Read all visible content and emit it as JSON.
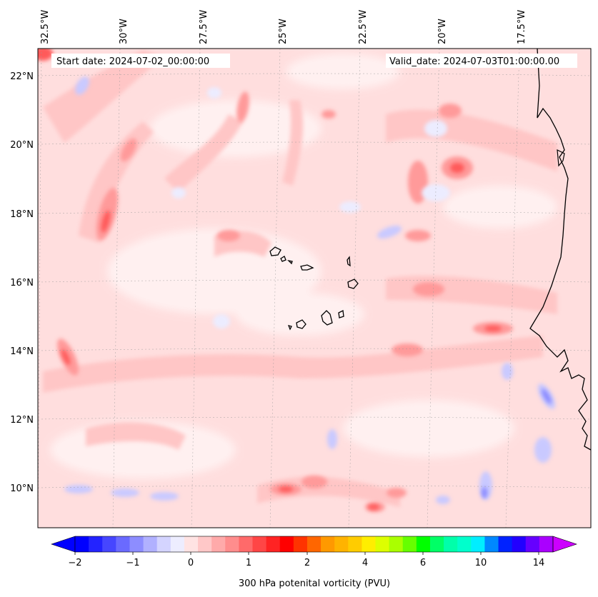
{
  "header": {
    "start_date": "Start date: 2024-07-02_00:00:00",
    "valid_date": "Valid_date: 2024-07-03T01:00:00.00"
  },
  "map": {
    "lon_labels": [
      "32.5°W",
      "30°W",
      "27.5°W",
      "25°W",
      "22.5°W",
      "20°W",
      "17.5°W"
    ],
    "lat_labels": [
      "22°N",
      "20°N",
      "18°N",
      "16°N",
      "14°N",
      "12°N",
      "10°N"
    ],
    "extent_lon": [
      -32.5,
      -15.0
    ],
    "extent_lat": [
      8.9,
      22.8
    ],
    "field": "300 hPa potential vorticity",
    "gridlines": true,
    "coastline_color": "#000000"
  },
  "colorbar": {
    "label": "300 hPa potenital vorticity (PVU)",
    "tick_labels": [
      "−2",
      "−1",
      "0",
      "1",
      "2",
      "4",
      "6",
      "10",
      "14"
    ],
    "extend": "both",
    "colors": [
      "#0000ff",
      "#2323ff",
      "#4646ff",
      "#6a6aff",
      "#8d8dff",
      "#b1b1ff",
      "#d4d4ff",
      "#ededff",
      "#ffe3e3",
      "#ffc8c8",
      "#ffaaaa",
      "#ff8d8d",
      "#ff6a6a",
      "#ff4646",
      "#ff2323",
      "#ff0000",
      "#ff3300",
      "#ff6600",
      "#ff9900",
      "#ffb300",
      "#ffcc00",
      "#ffee00",
      "#ddff00",
      "#aaff00",
      "#66ff00",
      "#00ff00",
      "#00ff66",
      "#00ffaa",
      "#00ffcc",
      "#00eeff",
      "#0088ff",
      "#0022ff",
      "#2200ff",
      "#6600ff",
      "#aa00ff"
    ],
    "under_color": "#0000ff",
    "over_color": "#cc00ff"
  }
}
